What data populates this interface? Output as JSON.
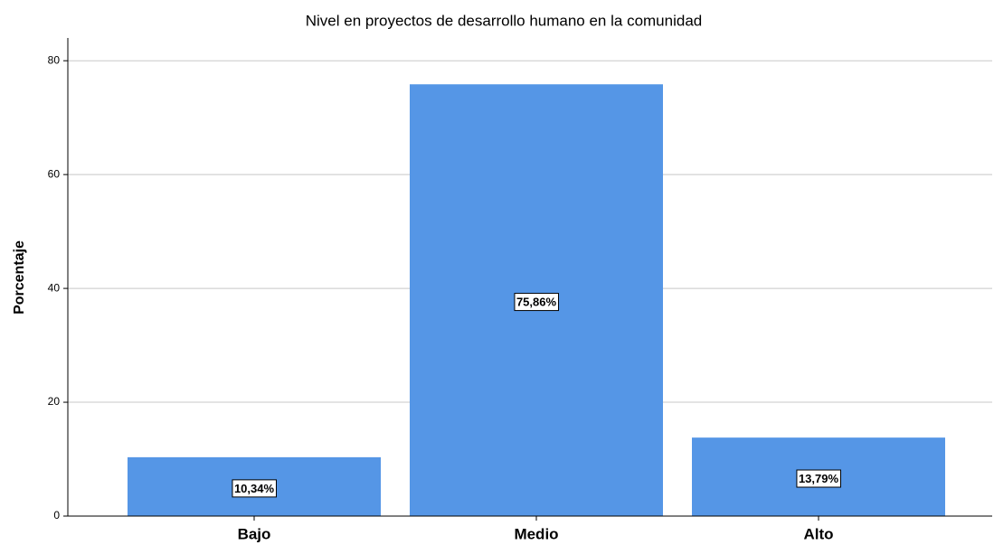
{
  "chart_data": {
    "type": "bar",
    "title": "Nivel en proyectos de desarrollo humano en la comunidad",
    "y_label": "Porcentaje",
    "categories": [
      "Bajo",
      "Medio",
      "Alto"
    ],
    "values": [
      10.34,
      75.86,
      13.79
    ],
    "value_labels": [
      "10,34%",
      "75,86%",
      "13,79%"
    ],
    "color": "#5596e6",
    "ylim": [
      0,
      84
    ],
    "yticks": [
      0,
      20,
      40,
      60,
      80
    ],
    "grid": true
  }
}
